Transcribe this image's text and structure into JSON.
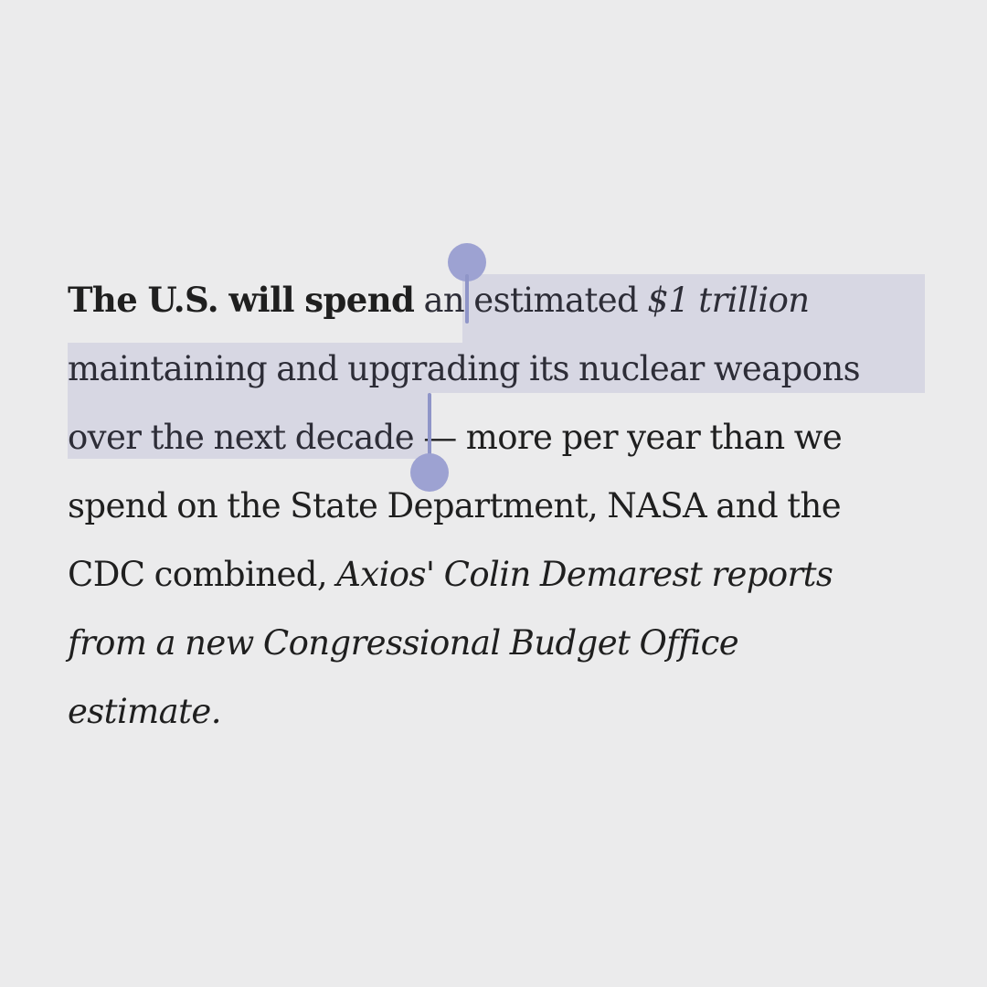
{
  "article": {
    "lead": "The U.S. will spend",
    "line1_mid": " an estimated ",
    "amount": "$1 trillion",
    "line2": "maintaining and upgrading its nuclear weapons",
    "line3_sel": "over the next decade",
    "line3_rest": " — more per year than we",
    "line4": "spend on the State Department, NASA and the",
    "line5_a": "CDC combined, ",
    "attribution_1": "Axios' Colin Demarest reports",
    "attribution_2": "from a new Congressional Budget Office",
    "attribution_3": "estimate."
  },
  "selection": {
    "text": "an estimated $1 trillion maintaining and upgrading its nuclear weapons over the next decade",
    "color": "#9da2d2"
  }
}
